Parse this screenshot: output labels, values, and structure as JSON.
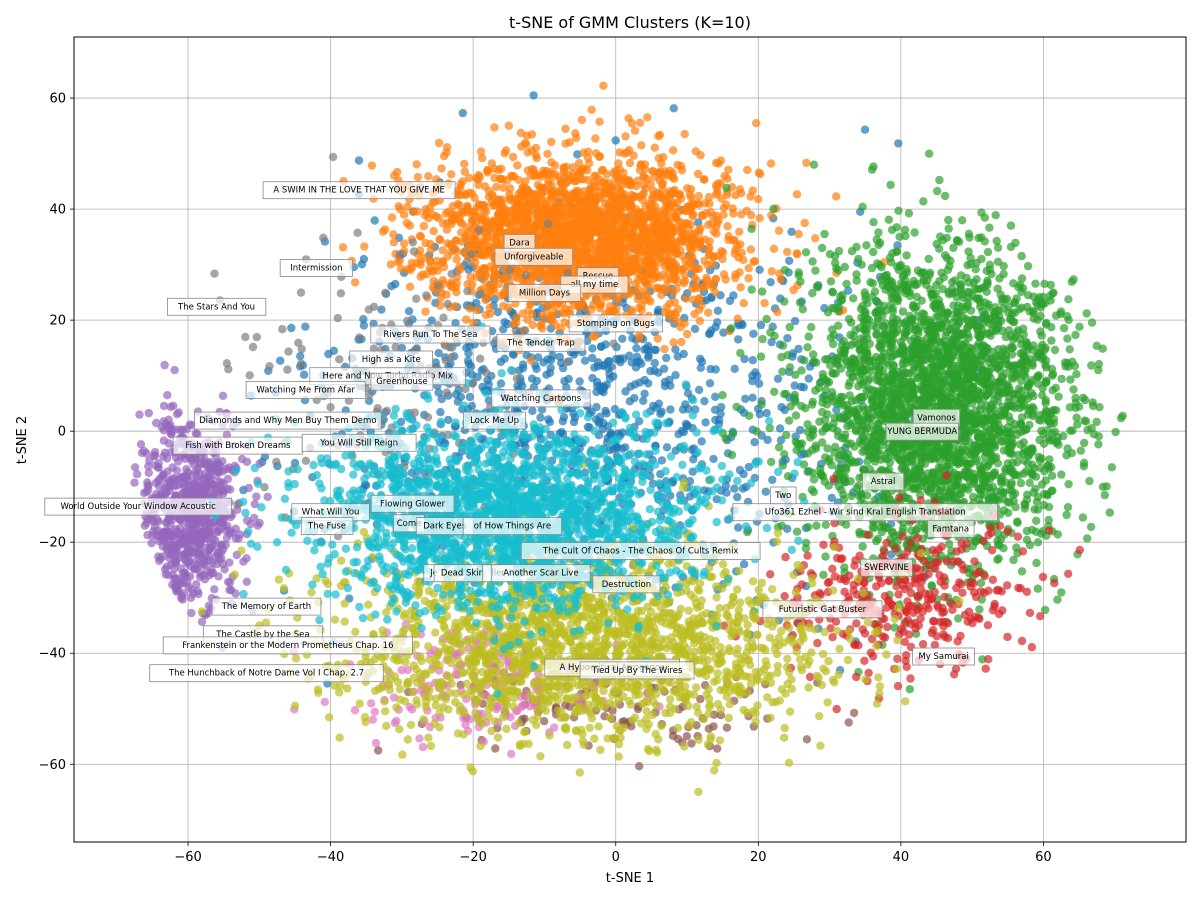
{
  "chart_data": {
    "type": "scatter",
    "title": "t-SNE of GMM Clusters (K=10)",
    "xlabel": "t-SNE 1",
    "ylabel": "t-SNE 2",
    "xlim": [
      -76,
      80
    ],
    "ylim": [
      -74,
      71
    ],
    "xticks": [
      -60,
      -40,
      -20,
      0,
      20,
      40,
      60
    ],
    "yticks": [
      -60,
      -40,
      -20,
      0,
      20,
      40,
      60
    ],
    "xtick_labels": [
      "−60",
      "−40",
      "−20",
      "0",
      "20",
      "40",
      "60"
    ],
    "ytick_labels": [
      "−60",
      "−40",
      "−20",
      "0",
      "20",
      "40",
      "60"
    ],
    "grid": true,
    "legend": "none",
    "cluster_colors": [
      "#1f77b4",
      "#ff7f0e",
      "#2ca02c",
      "#d62728",
      "#9467bd",
      "#8c564b",
      "#e377c2",
      "#7f7f7f",
      "#bcbd22",
      "#17becf"
    ],
    "clusters": [
      {
        "id": 0,
        "color": "#1f77b4",
        "center": [
          -5,
          5
        ],
        "spread": [
          30,
          28
        ],
        "count": 1100
      },
      {
        "id": 1,
        "color": "#ff7f0e",
        "center": [
          -5,
          35
        ],
        "spread": [
          18,
          12
        ],
        "count": 2400
      },
      {
        "id": 2,
        "color": "#2ca02c",
        "center": [
          45,
          5
        ],
        "spread": [
          16,
          24
        ],
        "count": 2800
      },
      {
        "id": 3,
        "color": "#d62728",
        "center": [
          40,
          -30
        ],
        "spread": [
          14,
          12
        ],
        "count": 350
      },
      {
        "id": 4,
        "color": "#9467bd",
        "center": [
          -60,
          -15
        ],
        "spread": [
          6,
          14
        ],
        "count": 700
      },
      {
        "id": 5,
        "color": "#8c564b",
        "center": [
          0,
          -50
        ],
        "spread": [
          25,
          8
        ],
        "count": 120
      },
      {
        "id": 6,
        "color": "#e377c2",
        "center": [
          -20,
          -45
        ],
        "spread": [
          15,
          8
        ],
        "count": 180
      },
      {
        "id": 7,
        "color": "#7f7f7f",
        "center": [
          -30,
          10
        ],
        "spread": [
          20,
          25
        ],
        "count": 150
      },
      {
        "id": 8,
        "color": "#bcbd22",
        "center": [
          -5,
          -38
        ],
        "spread": [
          28,
          14
        ],
        "count": 1900
      },
      {
        "id": 9,
        "color": "#17becf",
        "center": [
          -15,
          -15
        ],
        "spread": [
          22,
          14
        ],
        "count": 2000
      }
    ],
    "annotations": [
      {
        "text": "A SWIM IN THE LOVE THAT YOU GIVE ME",
        "x": -36,
        "y": 43.5
      },
      {
        "text": "Dara",
        "x": -13.5,
        "y": 34
      },
      {
        "text": "Unforgiveable",
        "x": -11.5,
        "y": 31.5
      },
      {
        "text": "Intermission",
        "x": -42,
        "y": 29.5
      },
      {
        "text": "Rescue",
        "x": -2.5,
        "y": 28
      },
      {
        "text": "all my time",
        "x": -3,
        "y": 26.5
      },
      {
        "text": "Million Days",
        "x": -10,
        "y": 25
      },
      {
        "text": "The Stars And You",
        "x": -56,
        "y": 22.5
      },
      {
        "text": "Stomping on Bugs",
        "x": 0,
        "y": 19.5
      },
      {
        "text": "Rivers Run To The Sea",
        "x": -26,
        "y": 17.5
      },
      {
        "text": "The Tender Trap",
        "x": -10.5,
        "y": 16
      },
      {
        "text": "High as a Kite",
        "x": -31.5,
        "y": 13
      },
      {
        "text": "Here and Now Turbo Radio Mix",
        "x": -32,
        "y": 10
      },
      {
        "text": "Greenhouse",
        "x": -30,
        "y": 9
      },
      {
        "text": "Watching Me From Afar",
        "x": -43.5,
        "y": 7.5
      },
      {
        "text": "Watching Cartoons",
        "x": -10.5,
        "y": 6
      },
      {
        "text": "Lock Me Up",
        "x": -17,
        "y": 2
      },
      {
        "text": "Diamonds and Why Men Buy Them Demo",
        "x": -46,
        "y": 2
      },
      {
        "text": "Vamonos",
        "x": 45,
        "y": 2.5
      },
      {
        "text": "YUNG BERMUDA",
        "x": 43,
        "y": 0
      },
      {
        "text": "Fish with Broken Dreams",
        "x": -53,
        "y": -2.5
      },
      {
        "text": "You Will Still Reign",
        "x": -36,
        "y": -2
      },
      {
        "text": "Astral",
        "x": 37.5,
        "y": -9
      },
      {
        "text": "World Outside Your Window Acoustic",
        "x": -67,
        "y": -13.5
      },
      {
        "text": "Flowing Glower",
        "x": -28.5,
        "y": -13
      },
      {
        "text": "What Will You",
        "x": -40,
        "y": -14.5
      },
      {
        "text": "Two",
        "x": 23.5,
        "y": -11.5
      },
      {
        "text": "Ufo361  Ezhel - Wir sind Kral English Translation",
        "x": 35,
        "y": -14.5
      },
      {
        "text": "The Fuse",
        "x": -40.5,
        "y": -17
      },
      {
        "text": "Come",
        "x": -29,
        "y": -16.5
      },
      {
        "text": "Dark Eyes",
        "x": -24,
        "y": -17
      },
      {
        "text": "of How Things Are",
        "x": -14.5,
        "y": -17
      },
      {
        "text": "Famtana",
        "x": 47,
        "y": -17.5
      },
      {
        "text": "The Cult Of Chaos - The Chaos Of Cults Remix",
        "x": 3.5,
        "y": -21.5
      },
      {
        "text": "SWERVINE",
        "x": 38,
        "y": -24.5
      },
      {
        "text": "Je",
        "x": -25.5,
        "y": -25.5
      },
      {
        "text": "Dead Skin",
        "x": -21.5,
        "y": -25.5
      },
      {
        "text": "ller",
        "x": -16.5,
        "y": -25.5
      },
      {
        "text": "Another Scar Live",
        "x": -10.5,
        "y": -25.5
      },
      {
        "text": "Destruction",
        "x": 1.5,
        "y": -27.5
      },
      {
        "text": "The Memory of Earth",
        "x": -49,
        "y": -31.5
      },
      {
        "text": "Futuristic Gat Buster",
        "x": 29,
        "y": -32
      },
      {
        "text": "The Castle by the Sea",
        "x": -49.5,
        "y": -36.5
      },
      {
        "text": "Frankenstein or the Modern Prometheus Chap. 16",
        "x": -46,
        "y": -38.5
      },
      {
        "text": "My Samurai",
        "x": 46,
        "y": -40.5
      },
      {
        "text": "A Hypocritical Arrogance",
        "x": -0.5,
        "y": -42.5
      },
      {
        "text": "Tied Up By The Wires",
        "x": 3,
        "y": -43
      },
      {
        "text": "The Hunchback of Notre Dame Vol I Chap. 2.7",
        "x": -49,
        "y": -43.5
      }
    ]
  }
}
